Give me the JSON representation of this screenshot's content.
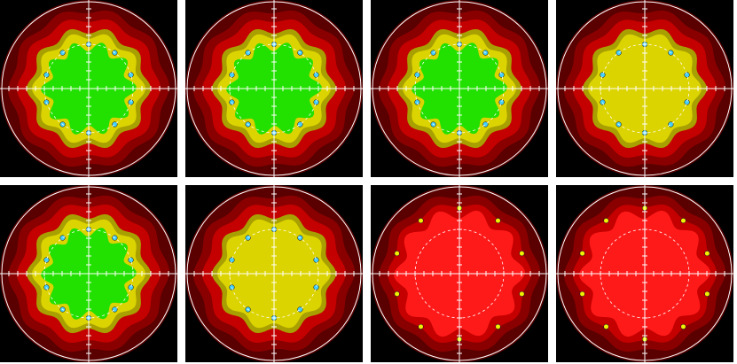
{
  "colors": {
    "background": "#000000",
    "separator": "#ffffff",
    "dark_red": "#5a0000",
    "red": "#c40000",
    "bright_red": "#ff1a1a",
    "yellow": "#dcd400",
    "green": "#22e000",
    "dot_cyan": "#40d0ff",
    "dot_yellow": "#f0f000"
  },
  "panels": [
    {
      "id": "top-1",
      "core": "green",
      "rim": "yellow"
    },
    {
      "id": "top-2",
      "core": "green",
      "rim": "yellow"
    },
    {
      "id": "top-3",
      "core": "green",
      "rim": "yellow"
    },
    {
      "id": "top-4",
      "core": "yellow",
      "rim": "yellow"
    },
    {
      "id": "bottom-1",
      "core": "green",
      "rim": "yellow"
    },
    {
      "id": "bottom-2",
      "core": "yellow",
      "rim": "yellow"
    },
    {
      "id": "bottom-3",
      "core": "red",
      "rim": "red"
    },
    {
      "id": "bottom-4",
      "core": "red",
      "rim": "red"
    }
  ]
}
